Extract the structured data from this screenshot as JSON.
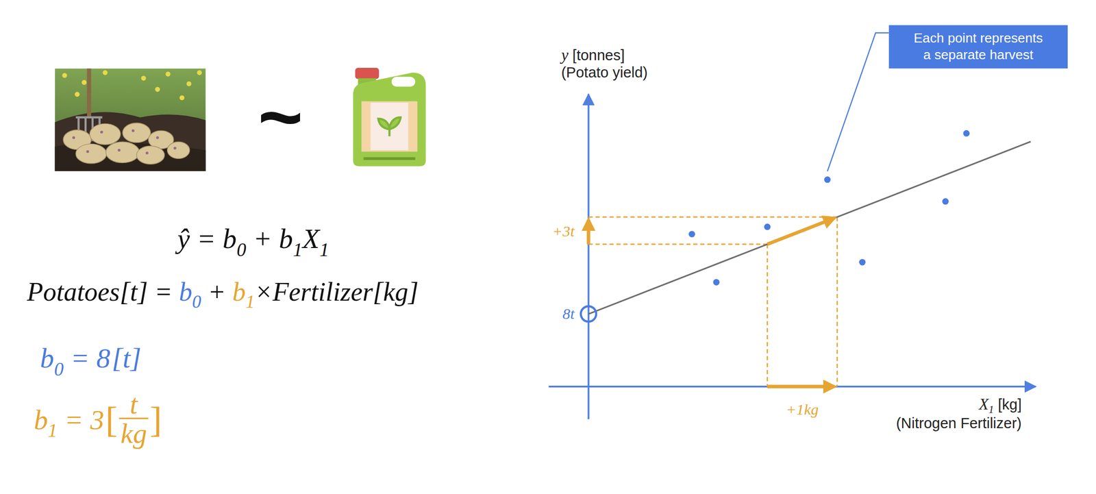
{
  "relation": "~",
  "equations": [
    [
      {
        "t": "ŷ"
      },
      {
        "t": " = "
      },
      {
        "t": "b",
        "sub": "0"
      },
      {
        "t": " + "
      },
      {
        "t": "b",
        "sub": "1"
      },
      {
        "t": "X",
        "sub": "1"
      }
    ],
    [
      {
        "t": "Potatoes[t] = "
      },
      {
        "t": "b",
        "sub": "0",
        "color": "#4a7be0"
      },
      {
        "t": " + "
      },
      {
        "t": "b",
        "sub": "1",
        "color": "#e6a532"
      },
      {
        "t": "×Fertilizer[kg]"
      }
    ]
  ],
  "coefficients": [
    {
      "symbol": "b",
      "sub": "0",
      "eq": " = ",
      "value": 8,
      "unit": "t",
      "brackets": [
        "[",
        "]"
      ],
      "color": "#4a7be0"
    },
    {
      "symbol": "b",
      "sub": "1",
      "eq": " = ",
      "value": 3,
      "unit": "t",
      "unit_den": "kg",
      "brackets": [
        "[",
        "]"
      ],
      "color": "#e6a532"
    }
  ],
  "chart_data": {
    "type": "scatter",
    "x": [
      1.48,
      1.83,
      2.56,
      3.42,
      3.92,
      5.11,
      5.41
    ],
    "values": [
      16.8,
      11.5,
      17.6,
      22.8,
      13.7,
      20.4,
      27.9
    ],
    "color": "#4a7be0",
    "xlim": [
      -0.57,
      6.4
    ],
    "ylim": [
      -3.6,
      32.2
    ],
    "xticks": [],
    "yticks": [],
    "tick_labels": false,
    "grid": false,
    "x_label": {
      "var": "X",
      "sub": "1",
      "unit": " [kg]",
      "desc": "(Nitrogen Fertilizer)"
    },
    "y_label": {
      "var": "y",
      "unit": " [tonnes]",
      "desc": "(Potato yield)"
    },
    "fit": {
      "b0": 8,
      "b1": 3,
      "x_end": 6.33,
      "color": "#6e6e6e"
    },
    "step": {
      "x_start": 2.56,
      "run": 1,
      "run_label": "+1kg",
      "rise_label": "+3t",
      "color": "#e6a532"
    },
    "intercept_label": "8t",
    "callout": [
      "Each point represents",
      "a separate harvest"
    ]
  }
}
